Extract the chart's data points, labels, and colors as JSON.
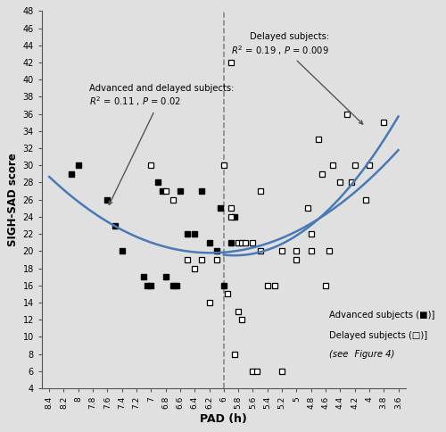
{
  "background_color": "#e0e0e0",
  "plot_bg_color": "#e0e0e0",
  "xlabel": "PAD (h)",
  "ylabel": "SIGH-SAD score",
  "ylim": [
    4,
    48
  ],
  "yticks": [
    4,
    6,
    8,
    10,
    12,
    14,
    16,
    18,
    20,
    22,
    24,
    26,
    28,
    30,
    32,
    34,
    36,
    38,
    40,
    42,
    44,
    46,
    48
  ],
  "xticks": [
    8.4,
    8.2,
    8.0,
    7.8,
    7.6,
    7.4,
    7.2,
    7.0,
    6.8,
    6.6,
    6.4,
    6.2,
    6.0,
    5.8,
    5.6,
    5.4,
    5.2,
    5.0,
    4.8,
    4.6,
    4.4,
    4.2,
    4.0,
    3.8,
    3.6
  ],
  "xlim_left": 8.5,
  "xlim_right": 3.5,
  "dashed_vline_x": 6.0,
  "curve_color": "#4a7ab5",
  "advanced_subjects": [
    [
      8.1,
      29
    ],
    [
      8.0,
      30
    ],
    [
      7.6,
      26
    ],
    [
      7.5,
      23
    ],
    [
      7.4,
      20
    ],
    [
      7.1,
      17
    ],
    [
      7.0,
      16
    ],
    [
      7.05,
      16
    ],
    [
      6.9,
      28
    ],
    [
      6.85,
      27
    ],
    [
      6.8,
      17
    ],
    [
      6.7,
      16
    ],
    [
      6.65,
      16
    ],
    [
      6.6,
      27
    ],
    [
      6.5,
      22
    ],
    [
      6.4,
      22
    ],
    [
      6.3,
      27
    ],
    [
      6.2,
      21
    ],
    [
      6.1,
      20
    ],
    [
      6.05,
      25
    ],
    [
      6.0,
      16
    ],
    [
      5.9,
      21
    ],
    [
      5.85,
      24
    ]
  ],
  "delayed_subjects": [
    [
      7.0,
      30
    ],
    [
      6.8,
      27
    ],
    [
      6.7,
      26
    ],
    [
      6.5,
      19
    ],
    [
      6.4,
      18
    ],
    [
      6.3,
      19
    ],
    [
      6.2,
      14
    ],
    [
      6.1,
      19
    ],
    [
      6.0,
      30
    ],
    [
      5.95,
      15
    ],
    [
      5.85,
      8
    ],
    [
      5.75,
      12
    ],
    [
      5.6,
      6
    ],
    [
      5.55,
      6
    ],
    [
      5.2,
      6
    ],
    [
      5.9,
      25
    ],
    [
      5.8,
      21
    ],
    [
      5.75,
      21
    ],
    [
      5.7,
      21
    ],
    [
      5.6,
      21
    ],
    [
      5.5,
      20
    ],
    [
      5.4,
      16
    ],
    [
      5.3,
      16
    ],
    [
      5.2,
      20
    ],
    [
      5.0,
      20
    ],
    [
      4.85,
      25
    ],
    [
      4.8,
      20
    ],
    [
      4.7,
      33
    ],
    [
      4.65,
      29
    ],
    [
      4.5,
      30
    ],
    [
      4.55,
      20
    ],
    [
      4.4,
      28
    ],
    [
      4.3,
      36
    ],
    [
      4.25,
      28
    ],
    [
      4.2,
      30
    ],
    [
      4.05,
      26
    ],
    [
      4.0,
      30
    ],
    [
      3.8,
      35
    ],
    [
      5.5,
      27
    ],
    [
      5.9,
      24
    ],
    [
      4.8,
      22
    ],
    [
      5.0,
      19
    ],
    [
      4.6,
      16
    ],
    [
      5.9,
      42
    ],
    [
      5.8,
      13
    ]
  ],
  "parabola_all_xmin": 6.18,
  "parabola_all_ymin": 19.8,
  "parabola_all_a": 1.8,
  "parabola_all_xstart": 8.4,
  "parabola_all_xend": 3.6,
  "parabola_del_xmin": 5.85,
  "parabola_del_ymin": 19.5,
  "parabola_del_a": 3.2,
  "parabola_del_xstart": 6.0,
  "parabola_del_xend": 3.6
}
